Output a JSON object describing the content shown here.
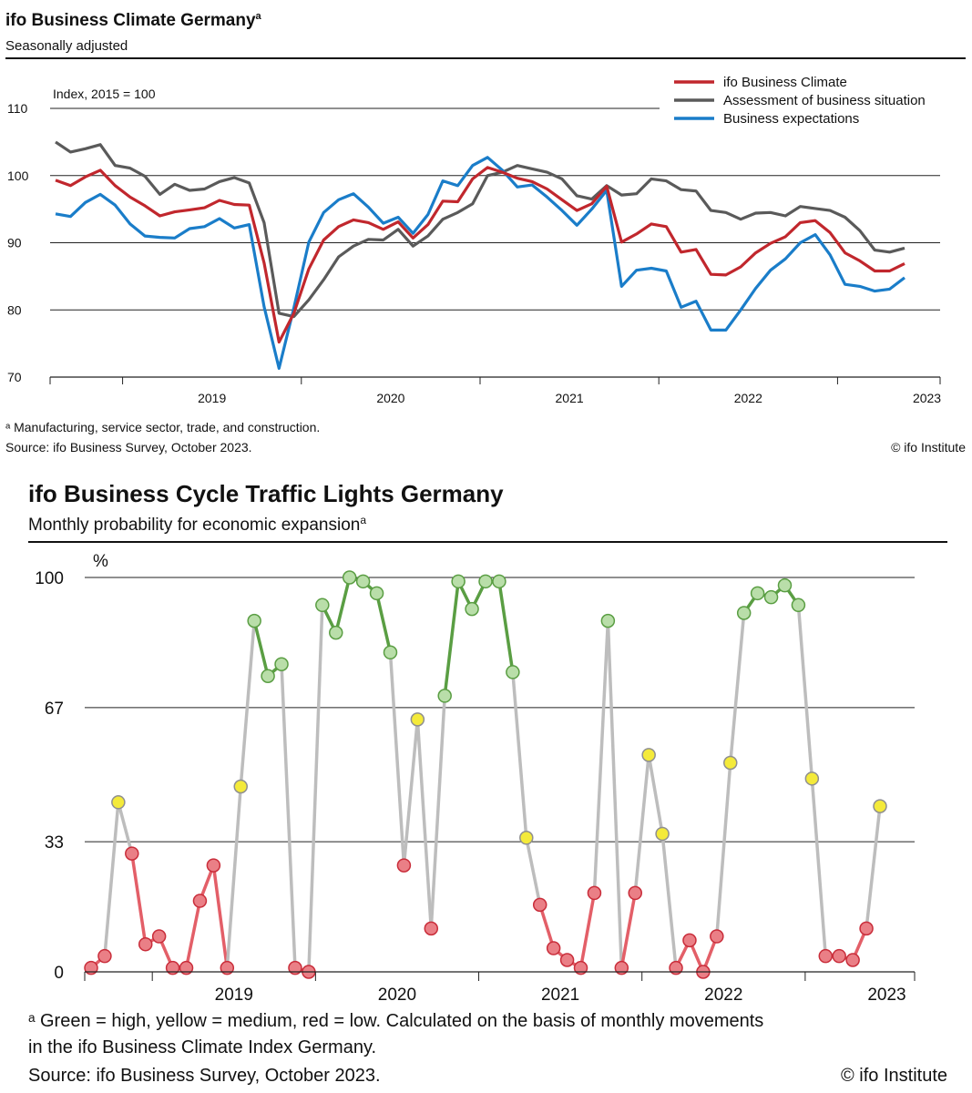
{
  "chart_data": [
    {
      "type": "line",
      "title": "ifo Business Climate Germany",
      "title_sup": "a",
      "subtitle": "Seasonally adjusted",
      "ylabel": "Index, 2015 = 100",
      "ylim": [
        70,
        110
      ],
      "yticks": [
        "70",
        "80",
        "90",
        "100",
        "110"
      ],
      "year_labels": [
        "2019",
        "2020",
        "2021",
        "2022",
        "2023"
      ],
      "x_start": "2018-08",
      "grid": true,
      "legend_position": "top-right",
      "series": [
        {
          "name": "ifo Business Climate",
          "color": "#c1272d",
          "values": [
            99.3,
            98.5,
            99.8,
            100.8,
            98.5,
            96.8,
            95.5,
            94.0,
            94.6,
            94.9,
            95.2,
            96.3,
            95.7,
            95.6,
            87.0,
            75.2,
            79.5,
            86.1,
            90.4,
            92.4,
            93.4,
            93.0,
            92.0,
            93.1,
            90.7,
            92.7,
            96.2,
            96.1,
            99.5,
            101.2,
            100.5,
            99.6,
            99.1,
            98.0,
            96.4,
            94.8,
            95.8,
            98.4,
            90.1,
            91.3,
            92.8,
            92.4,
            88.6,
            89.0,
            85.3,
            85.2,
            86.4,
            88.5,
            89.9,
            90.9,
            93.0,
            93.3,
            91.5,
            88.5,
            87.3,
            85.8,
            85.8,
            86.9
          ]
        },
        {
          "name": "Assessment of business situation",
          "color": "#5a5a5a",
          "values": [
            105.0,
            103.5,
            104.0,
            104.6,
            101.5,
            101.1,
            99.9,
            97.2,
            98.7,
            97.8,
            98.0,
            99.1,
            99.7,
            98.9,
            93.0,
            79.5,
            79.0,
            81.5,
            84.5,
            87.9,
            89.5,
            90.5,
            90.4,
            92.0,
            89.5,
            91.0,
            93.5,
            94.5,
            95.8,
            100.0,
            100.5,
            101.5,
            101.0,
            100.5,
            99.5,
            97.0,
            96.5,
            98.5,
            97.1,
            97.3,
            99.5,
            99.2,
            97.9,
            97.7,
            94.8,
            94.5,
            93.5,
            94.4,
            94.5,
            94.0,
            95.4,
            95.1,
            94.8,
            93.8,
            91.8,
            88.9,
            88.6,
            89.2
          ]
        },
        {
          "name": "Business expectations",
          "color": "#1a7dc9",
          "values": [
            94.3,
            93.9,
            96.0,
            97.2,
            95.6,
            92.8,
            91.0,
            90.8,
            90.7,
            92.1,
            92.4,
            93.6,
            92.2,
            92.7,
            80.5,
            71.3,
            80.3,
            90.1,
            94.5,
            96.4,
            97.3,
            95.3,
            92.9,
            93.8,
            91.4,
            94.2,
            99.2,
            98.5,
            101.5,
            102.7,
            100.8,
            98.3,
            98.6,
            96.8,
            94.8,
            92.6,
            95.0,
            97.8,
            83.5,
            85.9,
            86.2,
            85.8,
            80.4,
            81.3,
            77.0,
            77.0,
            80.0,
            83.2,
            85.9,
            87.6,
            90.0,
            91.2,
            88.2,
            83.8,
            83.5,
            82.8,
            83.1,
            84.8
          ]
        }
      ],
      "footnote": "ᵃ Manufacturing, service sector, trade, and construction.",
      "source": "Source: ifo Business Survey, October 2023.",
      "copyright": "© ifo Institute"
    },
    {
      "type": "line",
      "title": "ifo Business Cycle Traffic Lights Germany",
      "subtitle": "Monthly probability for economic expansion",
      "subtitle_sup": "a",
      "ylabel": "%",
      "ylim": [
        0,
        100
      ],
      "yticks": [
        "0",
        "33",
        "67",
        "100"
      ],
      "year_labels": [
        "2019",
        "2020",
        "2021",
        "2022",
        "2023"
      ],
      "x_start": "2018-08",
      "grid": true,
      "colors": {
        "high": "#5a9e43",
        "medium": "#e8d800",
        "low": "#e05b63",
        "neutral": "#bdbdbd"
      },
      "values": [
        1,
        4,
        43,
        30,
        7,
        9,
        1,
        1,
        18,
        27,
        1,
        47,
        89,
        75,
        78,
        1,
        0,
        93,
        86,
        100,
        99,
        96,
        81,
        27,
        64,
        11,
        70,
        99,
        92,
        99,
        99,
        76,
        34,
        17,
        6,
        3,
        1,
        20,
        89,
        1,
        20,
        55,
        35,
        1,
        8,
        0,
        9,
        53,
        91,
        96,
        95,
        98,
        93,
        49,
        4,
        4,
        3,
        11,
        42
      ],
      "levels": [
        "low",
        "low",
        "medium",
        "low",
        "low",
        "low",
        "low",
        "low",
        "low",
        "low",
        "low",
        "medium",
        "high",
        "high",
        "high",
        "low",
        "low",
        "high",
        "high",
        "high",
        "high",
        "high",
        "high",
        "low",
        "medium",
        "low",
        "high",
        "high",
        "high",
        "high",
        "high",
        "high",
        "medium",
        "low",
        "low",
        "low",
        "low",
        "low",
        "high",
        "low",
        "low",
        "medium",
        "medium",
        "low",
        "low",
        "low",
        "low",
        "medium",
        "high",
        "high",
        "high",
        "high",
        "high",
        "medium",
        "low",
        "low",
        "low",
        "low",
        "medium"
      ],
      "footnote_line1": "ᵃ Green = high, yellow = medium, red = low. Calculated on the basis of monthly movements",
      "footnote_line2": "in the ifo Business Climate Index Germany.",
      "source": "Source: ifo Business Survey, October 2023.",
      "copyright": "© ifo Institute"
    }
  ]
}
